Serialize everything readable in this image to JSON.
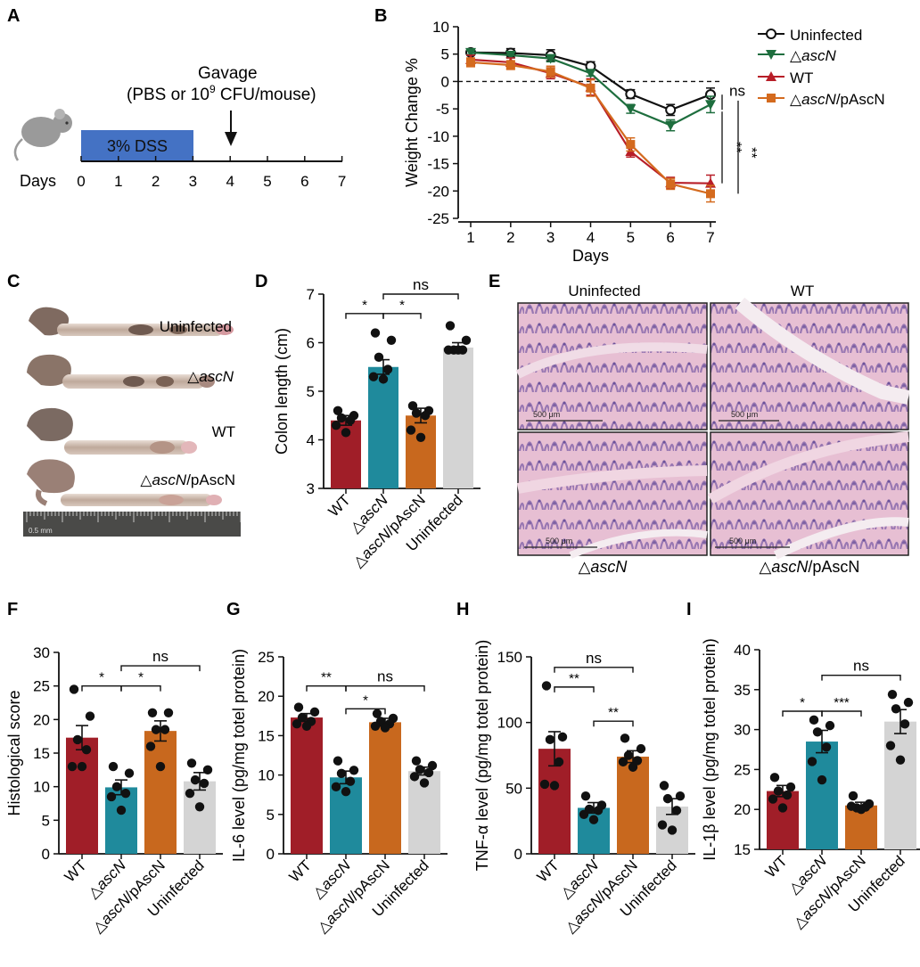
{
  "panels": {
    "A": "A",
    "B": "B",
    "C": "C",
    "D": "D",
    "E": "E",
    "F": "F",
    "G": "G",
    "H": "H",
    "I": "I"
  },
  "panelA": {
    "gavage_line1": "Gavage",
    "gavage_line2_pre": "(PBS or 10",
    "gavage_sup": "9",
    "gavage_line2_post": " CFU/mouse)",
    "dss": "3% DSS",
    "days_label": "Days",
    "ticks": [
      "0",
      "1",
      "2",
      "3",
      "4",
      "5",
      "6",
      "7"
    ]
  },
  "groups": {
    "uninfected": "Uninfected",
    "delta_symbol": "△",
    "ascn": "ascN",
    "wt": "WT",
    "comp_suffix": "/pAscN"
  },
  "colors": {
    "WT": "#a01e28",
    "ascN": "#1f8a9c",
    "comp": "#c8681e",
    "Uninfected": "#d4d4d4",
    "line_ascN": "#1e6e3e",
    "line_WT": "#b81e28",
    "line_comp": "#d46a1e"
  },
  "panelC": {
    "labels": [
      "Uninfected",
      "△ascN",
      "WT",
      "△ascN/pAscN"
    ],
    "ruler_text": "0.5 mm"
  },
  "panelE": {
    "top_left": "Uninfected",
    "top_right": "WT",
    "bottom_left": "△ascN",
    "bottom_right": "△ascN/pAscN",
    "scale": "500 μm"
  },
  "chart_data": [
    {
      "id": "B",
      "type": "line",
      "xlabel": "Days",
      "ylabel": "Weight Change %",
      "x": [
        1,
        2,
        3,
        4,
        5,
        6,
        7
      ],
      "ylim": [
        -25,
        10
      ],
      "yticks": [
        10,
        5,
        0,
        -5,
        -10,
        -15,
        -20,
        -25
      ],
      "series": [
        {
          "name": "Uninfected",
          "marker": "circle-open",
          "values": [
            5.3,
            5.2,
            4.8,
            2.8,
            -2.3,
            -5.2,
            -2.4
          ],
          "err": [
            0.5,
            0.8,
            1.0,
            0.8,
            0.8,
            1.0,
            1.2
          ]
        },
        {
          "name": "△ascN",
          "marker": "triangle-down",
          "values": [
            5.3,
            4.8,
            4.2,
            1.5,
            -5.0,
            -8.0,
            -4.2
          ],
          "err": [
            0.4,
            0.5,
            0.6,
            0.5,
            0.8,
            1.0,
            1.5
          ]
        },
        {
          "name": "WT",
          "marker": "triangle-up",
          "values": [
            4.0,
            3.5,
            1.5,
            -1.0,
            -12.8,
            -18.5,
            -18.6
          ],
          "err": [
            0.8,
            0.8,
            1.0,
            1.5,
            1.0,
            1.0,
            1.5
          ]
        },
        {
          "name": "△ascN/pAscN",
          "marker": "square",
          "values": [
            3.5,
            3.0,
            1.8,
            -1.2,
            -11.5,
            -18.7,
            -20.5
          ],
          "err": [
            0.8,
            0.8,
            1.0,
            1.5,
            1.2,
            1.0,
            1.5
          ]
        }
      ],
      "annotations": [
        "ns",
        "**",
        "**"
      ]
    },
    {
      "id": "D",
      "type": "bar",
      "ylabel": "Colon length (cm)",
      "categories": [
        "WT",
        "△ascN",
        "△ascN/pAscN",
        "Uninfected"
      ],
      "values": [
        4.4,
        5.5,
        4.5,
        5.9
      ],
      "err": [
        0.1,
        0.15,
        0.15,
        0.1
      ],
      "points": [
        [
          4.6,
          4.5,
          4.45,
          4.4,
          4.3,
          4.15
        ],
        [
          6.2,
          6.05,
          5.7,
          5.45,
          5.3,
          5.25
        ],
        [
          4.7,
          4.6,
          4.55,
          4.5,
          4.2,
          4.05
        ],
        [
          6.35,
          6.05,
          5.85,
          5.85,
          5.85,
          5.85
        ]
      ],
      "ylim": [
        3,
        7
      ],
      "yticks": [
        3,
        4,
        5,
        6,
        7
      ],
      "significance": [
        {
          "from": 0,
          "to": 1,
          "label": "*",
          "level": 6.6
        },
        {
          "from": 1,
          "to": 2,
          "label": "*",
          "level": 6.6
        },
        {
          "from": 1,
          "to": 3,
          "label": "ns",
          "level": 7.0
        }
      ]
    },
    {
      "id": "F",
      "type": "bar",
      "ylabel": "Histological score",
      "categories": [
        "WT",
        "△ascN",
        "△ascN/pAscN",
        "Uninfected"
      ],
      "values": [
        17.3,
        9.9,
        18.3,
        10.8
      ],
      "err": [
        1.8,
        1.1,
        1.5,
        1.3
      ],
      "points": [
        [
          24.5,
          20.5,
          17,
          15.5,
          13,
          13
        ],
        [
          13,
          12,
          10,
          9,
          8.5,
          6.5
        ],
        [
          21,
          21,
          18.5,
          18.5,
          16,
          13
        ],
        [
          13.5,
          12.5,
          11,
          10.5,
          9,
          7
        ]
      ],
      "ylim": [
        0,
        30
      ],
      "yticks": [
        0,
        5,
        10,
        15,
        20,
        25,
        30
      ],
      "significance": [
        {
          "from": 0,
          "to": 1,
          "label": "*",
          "level": 25
        },
        {
          "from": 1,
          "to": 2,
          "label": "*",
          "level": 25
        },
        {
          "from": 1,
          "to": 3,
          "label": "ns",
          "level": 28
        }
      ]
    },
    {
      "id": "G",
      "type": "bar",
      "ylabel": "IL-6 level (pg/mg totel protein)",
      "categories": [
        "WT",
        "△ascN",
        "△ascN/pAscN",
        "Uninfected"
      ],
      "values": [
        17.3,
        9.7,
        16.7,
        10.5
      ],
      "err": [
        0.5,
        0.8,
        0.5,
        0.5
      ],
      "points": [
        [
          18.6,
          18.0,
          17.3,
          16.8,
          16.5,
          16.2
        ],
        [
          11.8,
          10.6,
          10.2,
          9.2,
          8.5,
          7.9
        ],
        [
          17.8,
          17.2,
          16.8,
          16.5,
          16.2,
          16.0
        ],
        [
          11.8,
          11.2,
          10.7,
          10.3,
          9.8,
          9.0
        ]
      ],
      "ylim": [
        0,
        25
      ],
      "yticks": [
        0,
        5,
        10,
        15,
        20,
        25
      ],
      "significance": [
        {
          "from": 0,
          "to": 1,
          "label": "**",
          "level": 21.3
        },
        {
          "from": 1,
          "to": 2,
          "label": "*",
          "level": 18.4
        },
        {
          "from": 1,
          "to": 3,
          "label": "ns",
          "level": 21.3
        }
      ]
    },
    {
      "id": "H",
      "type": "bar",
      "ylabel": "TNF-α level (pg/mg totel protein)",
      "categories": [
        "WT",
        "△ascN",
        "△ascN/pAscN",
        "Uninfected"
      ],
      "values": [
        80,
        35,
        74,
        36
      ],
      "err": [
        13,
        4,
        4.5,
        6
      ],
      "points": [
        [
          128,
          89,
          87,
          70,
          53,
          52
        ],
        [
          44,
          37,
          34,
          33,
          30,
          26
        ],
        [
          88,
          80,
          75,
          71,
          70,
          66
        ],
        [
          52,
          44,
          42,
          33,
          22,
          18
        ]
      ],
      "ylim": [
        0,
        150
      ],
      "yticks": [
        0,
        50,
        100,
        150
      ],
      "significance": [
        {
          "from": 0,
          "to": 1,
          "label": "**",
          "level": 127
        },
        {
          "from": 1,
          "to": 2,
          "label": "**",
          "level": 101
        },
        {
          "from": 0,
          "to": 2,
          "label": "ns",
          "level": 142
        }
      ]
    },
    {
      "id": "I",
      "type": "bar",
      "ylabel": "IL-1β level (pg/mg totel protein)",
      "categories": [
        "WT",
        "△ascN",
        "△ascN/pAscN",
        "Uninfected"
      ],
      "values": [
        22.3,
        28.5,
        20.5,
        31.0
      ],
      "err": [
        0.7,
        1.4,
        0.4,
        1.5
      ],
      "points": [
        [
          24.0,
          22.8,
          22.3,
          21.8,
          21.3,
          20.2
        ],
        [
          31.2,
          30.5,
          29.7,
          27.8,
          26.0,
          23.7
        ],
        [
          21.7,
          20.7,
          20.2,
          20.3,
          20.4,
          20.0
        ],
        [
          34.4,
          33.4,
          32.6,
          30.7,
          28.0,
          26.2
        ]
      ],
      "ylim": [
        15,
        40
      ],
      "yticks": [
        15,
        20,
        25,
        30,
        35,
        40
      ],
      "significance": [
        {
          "from": 0,
          "to": 1,
          "label": "*",
          "level": 32.3
        },
        {
          "from": 1,
          "to": 2,
          "label": "***",
          "level": 32.3
        },
        {
          "from": 1,
          "to": 3,
          "label": "ns",
          "level": 36.8
        }
      ]
    }
  ]
}
